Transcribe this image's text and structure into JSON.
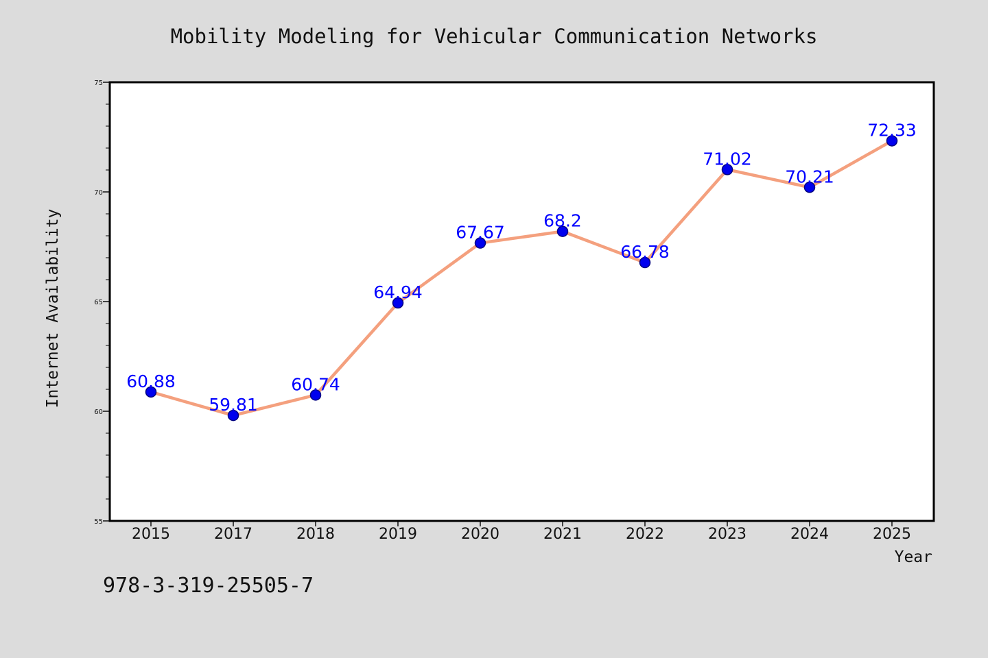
{
  "chart_data": {
    "type": "line",
    "title": "Mobility Modeling for Vehicular Communication Networks",
    "xlabel": "Year",
    "ylabel": "Internet Availability",
    "categories": [
      "2015",
      "2017",
      "2018",
      "2019",
      "2020",
      "2021",
      "2022",
      "2023",
      "2024",
      "2025"
    ],
    "series": [
      {
        "values": [
          60.88,
          59.81,
          60.74,
          64.94,
          67.67,
          68.2,
          66.78,
          71.02,
          70.21,
          72.33
        ],
        "data_labels": [
          "60.88",
          "59.81",
          "60.74",
          "64.94",
          "67.67",
          "68.2",
          "66.78",
          "71.02",
          "70.21",
          "72.33"
        ]
      }
    ],
    "ylim": [
      55,
      75
    ],
    "yticks": [
      55,
      60,
      65,
      70,
      75
    ],
    "ytick_labels": [
      "55",
      "60",
      "65",
      "70",
      "75"
    ],
    "grid": false,
    "legend": "none",
    "colors": {
      "background": "#dcdcdc",
      "plot_background": "#ffffff",
      "line": "#f4a07e",
      "marker": "#0000ee",
      "marker_edge": "#000080",
      "data_label": "#0000ff",
      "text": "#111111"
    }
  },
  "footer": {
    "isbn": "978-3-319-25505-7"
  }
}
